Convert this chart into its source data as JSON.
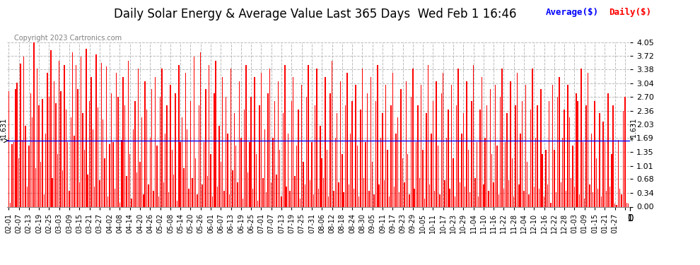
{
  "title": "Daily Solar Energy & Average Value Last 365 Days  Wed Feb 1 16:46",
  "copyright": "Copyright 2023 Cartronics.com",
  "legend_avg": "Average($)",
  "legend_daily": "Daily($)",
  "avg_value": 1.631,
  "ylim": [
    0.0,
    4.05
  ],
  "yticks": [
    0.0,
    0.34,
    0.68,
    1.01,
    1.35,
    1.69,
    2.03,
    2.36,
    2.7,
    3.04,
    3.38,
    3.72,
    4.05
  ],
  "bar_color": "#ff0000",
  "avg_line_color": "#0000ff",
  "background_color": "#ffffff",
  "grid_color": "#bbbbbb",
  "title_fontsize": 12,
  "bar_width": 0.6,
  "x_labels": [
    "02-01",
    "02-07",
    "02-13",
    "02-19",
    "02-25",
    "03-03",
    "03-09",
    "03-15",
    "03-21",
    "03-27",
    "04-02",
    "04-08",
    "04-14",
    "04-20",
    "04-26",
    "05-02",
    "05-08",
    "05-14",
    "05-20",
    "05-26",
    "06-01",
    "06-07",
    "06-13",
    "06-19",
    "06-25",
    "07-01",
    "07-07",
    "07-13",
    "07-19",
    "07-25",
    "07-31",
    "08-06",
    "08-12",
    "08-18",
    "08-24",
    "08-30",
    "09-05",
    "09-11",
    "09-17",
    "09-23",
    "09-29",
    "10-05",
    "10-11",
    "10-17",
    "10-23",
    "10-29",
    "11-04",
    "11-10",
    "11-16",
    "11-22",
    "11-28",
    "12-04",
    "12-10",
    "12-16",
    "12-22",
    "12-28",
    "01-03",
    "01-09",
    "01-15",
    "01-21",
    "01-27"
  ],
  "values": [
    2.85,
    0.1,
    1.55,
    1.6,
    2.9,
    3.05,
    1.2,
    3.52,
    1.65,
    3.7,
    2.0,
    0.5,
    1.5,
    2.8,
    2.2,
    4.05,
    0.95,
    3.4,
    2.5,
    1.1,
    2.65,
    0.3,
    1.8,
    3.3,
    2.7,
    3.85,
    0.7,
    3.1,
    2.55,
    1.3,
    3.6,
    2.85,
    0.9,
    3.5,
    2.4,
    1.6,
    0.4,
    2.2,
    3.8,
    1.75,
    3.5,
    2.9,
    0.6,
    3.7,
    2.3,
    1.4,
    3.9,
    0.8,
    2.6,
    3.2,
    1.9,
    0.5,
    3.75,
    2.45,
    0.65,
    3.55,
    2.15,
    1.2,
    3.45,
    0.25,
    1.55,
    2.8,
    1.6,
    0.45,
    3.3,
    2.7,
    0.1,
    1.65,
    3.2,
    2.5,
    0.75,
    3.6,
    1.3,
    0.2,
    1.9,
    2.6,
    0.85,
    3.4,
    1.1,
    2.2,
    0.3,
    3.1,
    2.4,
    0.55,
    1.7,
    2.9,
    0.4,
    3.2,
    1.5,
    0.25,
    2.7,
    3.4,
    0.6,
    1.8,
    2.5,
    0.35,
    3.0,
    1.4,
    0.8,
    2.8,
    0.15,
    3.5,
    1.6,
    2.2,
    0.95,
    3.3,
    1.9,
    0.45,
    2.6,
    0.7,
    3.7,
    1.2,
    0.3,
    2.5,
    3.8,
    0.55,
    1.6,
    2.9,
    0.75,
    3.5,
    1.3,
    0.25,
    2.8,
    3.6,
    0.5,
    2.0,
    1.1,
    3.2,
    0.4,
    2.7,
    1.8,
    0.3,
    3.4,
    0.9,
    2.3,
    1.5,
    0.6,
    3.1,
    1.7,
    0.2,
    2.4,
    3.5,
    0.85,
    1.6,
    2.7,
    0.45,
    3.2,
    1.3,
    0.15,
    2.5,
    3.3,
    0.7,
    1.9,
    0.35,
    2.8,
    3.4,
    0.6,
    1.7,
    2.6,
    0.8,
    3.1,
    1.4,
    0.25,
    2.3,
    3.5,
    0.5,
    1.8,
    0.4,
    2.6,
    3.2,
    0.75,
    1.5,
    2.4,
    0.2,
    3.0,
    1.1,
    0.55,
    2.7,
    3.5,
    0.65,
    1.6,
    0.3,
    2.5,
    3.4,
    0.45,
    2.0,
    1.2,
    0.7,
    3.2,
    1.4,
    0.25,
    2.8,
    3.6,
    0.4,
    1.7,
    2.3,
    0.6,
    3.1,
    1.3,
    0.35,
    2.5,
    3.3,
    0.55,
    1.8,
    2.6,
    0.45,
    3.0,
    1.5,
    0.25,
    2.4,
    3.4,
    0.7,
    1.6,
    2.8,
    0.4,
    3.2,
    1.1,
    0.3,
    2.6,
    3.5,
    0.55,
    1.7,
    2.3,
    0.65,
    3.0,
    1.4,
    0.25,
    2.5,
    3.3,
    0.5,
    1.8,
    2.2,
    0.35,
    2.9,
    1.2,
    0.6,
    3.1,
    1.3,
    0.3,
    2.7,
    3.4,
    0.45,
    1.6,
    2.5,
    0.7,
    3.0,
    1.4,
    0.2,
    2.3,
    3.5,
    0.55,
    1.8,
    2.6,
    0.4,
    3.1,
    1.5,
    0.3,
    2.8,
    3.3,
    0.65,
    1.7,
    2.4,
    0.45,
    3.0,
    1.2,
    0.25,
    2.5,
    3.4,
    0.6,
    1.8,
    2.3,
    0.5,
    3.1,
    1.4,
    0.35,
    2.6,
    3.5,
    0.7,
    1.6,
    0.25,
    2.4,
    3.2,
    0.55,
    1.7,
    2.5,
    0.4,
    2.9,
    1.3,
    0.6,
    3.0,
    1.5,
    0.3,
    2.7,
    3.4,
    0.45,
    1.6,
    2.3,
    0.65,
    3.1,
    1.2,
    0.25,
    2.5,
    3.3,
    0.55,
    1.8,
    2.6,
    0.4,
    3.0,
    1.1,
    0.3,
    2.4,
    3.4,
    0.5,
    1.7,
    2.5,
    0.45,
    2.9,
    1.3,
    0.25,
    1.4,
    0.55,
    2.6,
    0.1,
    3.0,
    1.4,
    0.35,
    2.7,
    3.2,
    0.6,
    1.7,
    2.4,
    0.4,
    3.0,
    2.2,
    0.7,
    1.5,
    0.5,
    2.8,
    2.6,
    0.3,
    3.4,
    1.6,
    0.2,
    2.5,
    3.3,
    0.55,
    1.8,
    0.35,
    2.6,
    1.2,
    0.45,
    2.3,
    0.25,
    2.1,
    1.6,
    0.4,
    2.8,
    0.5,
    1.3,
    2.5,
    0.07,
    0.04,
    1.65,
    0.45,
    0.3,
    2.36,
    2.7,
    0.1,
    0.07
  ]
}
